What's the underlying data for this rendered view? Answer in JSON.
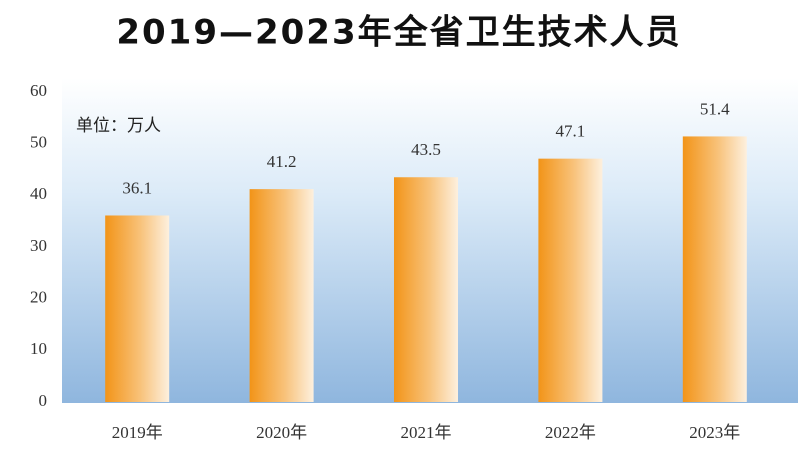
{
  "chart_data": {
    "type": "bar",
    "title": "2019—2023年全省卫生技术人员",
    "unit_label": "单位：万人",
    "categories": [
      "2019年",
      "2020年",
      "2021年",
      "2022年",
      "2023年"
    ],
    "values": [
      36.1,
      41.2,
      43.5,
      47.1,
      51.4
    ],
    "color": "#f29418",
    "ylim": [
      0,
      60
    ],
    "yticks": [
      0,
      10,
      20,
      30,
      40,
      50,
      60
    ],
    "grid": false,
    "data_labels": true
  }
}
